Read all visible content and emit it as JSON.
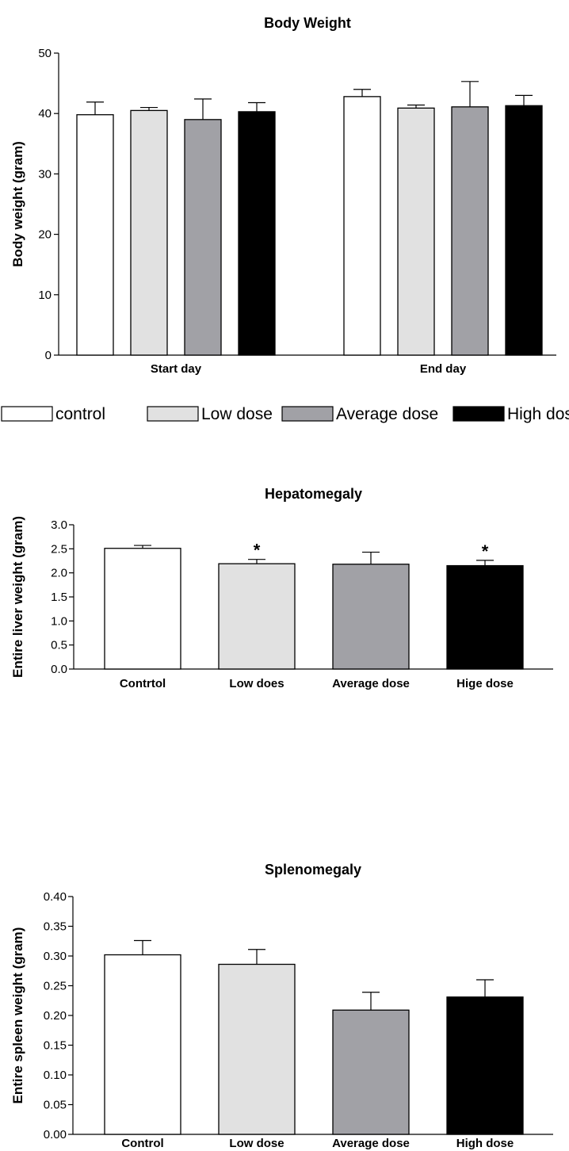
{
  "chart_data": [
    {
      "type": "bar",
      "title": "Body Weight",
      "xlabel": "",
      "ylabel": "Body weight (gram)",
      "ylim": [
        0,
        50
      ],
      "yticks": [
        "0",
        "10",
        "20",
        "30",
        "40",
        "50"
      ],
      "grid": false,
      "categories": [
        "Start day",
        "End day"
      ],
      "series": [
        {
          "name": "control",
          "color": "#ffffff",
          "values": [
            39.8,
            42.8
          ],
          "errors": [
            2.1,
            1.2
          ]
        },
        {
          "name": "Low dose",
          "color": "#e1e1e1",
          "values": [
            40.5,
            40.9
          ],
          "errors": [
            0.5,
            0.5
          ]
        },
        {
          "name": "Average dose",
          "color": "#a1a1a6",
          "values": [
            39.0,
            41.1
          ],
          "errors": [
            3.4,
            4.2
          ]
        },
        {
          "name": "High dose",
          "color": "#000000",
          "values": [
            40.3,
            41.3
          ],
          "errors": [
            1.5,
            1.7
          ]
        }
      ],
      "legend_position": "bottom"
    },
    {
      "type": "bar",
      "title": "Hepatomegaly",
      "xlabel": "",
      "ylabel": "Entire liver weight (gram)",
      "ylim": [
        0,
        3.0
      ],
      "yticks": [
        "0.0",
        "0.5",
        "1.0",
        "1.5",
        "2.0",
        "2.5",
        "3.0"
      ],
      "grid": false,
      "categories": [
        "Contrtol",
        "Low does",
        "Average dose",
        "Hige dose"
      ],
      "colors": [
        "#ffffff",
        "#e1e1e1",
        "#a1a1a6",
        "#000000"
      ],
      "values": [
        2.51,
        2.19,
        2.18,
        2.15
      ],
      "errors": [
        0.06,
        0.09,
        0.25,
        0.11
      ],
      "annotations": [
        "",
        "*",
        "",
        "*"
      ]
    },
    {
      "type": "bar",
      "title": "Splenomegaly",
      "xlabel": "",
      "ylabel": "Entire spleen weight (gram)",
      "ylim": [
        0,
        0.4
      ],
      "yticks": [
        "0.00",
        "0.05",
        "0.10",
        "0.15",
        "0.20",
        "0.25",
        "0.30",
        "0.35",
        "0.40"
      ],
      "grid": false,
      "categories": [
        "Control",
        "Low dose",
        "Average dose",
        "High dose"
      ],
      "colors": [
        "#ffffff",
        "#e1e1e1",
        "#a1a1a6",
        "#000000"
      ],
      "values": [
        0.302,
        0.286,
        0.209,
        0.231
      ],
      "errors": [
        0.024,
        0.025,
        0.03,
        0.029
      ]
    }
  ]
}
